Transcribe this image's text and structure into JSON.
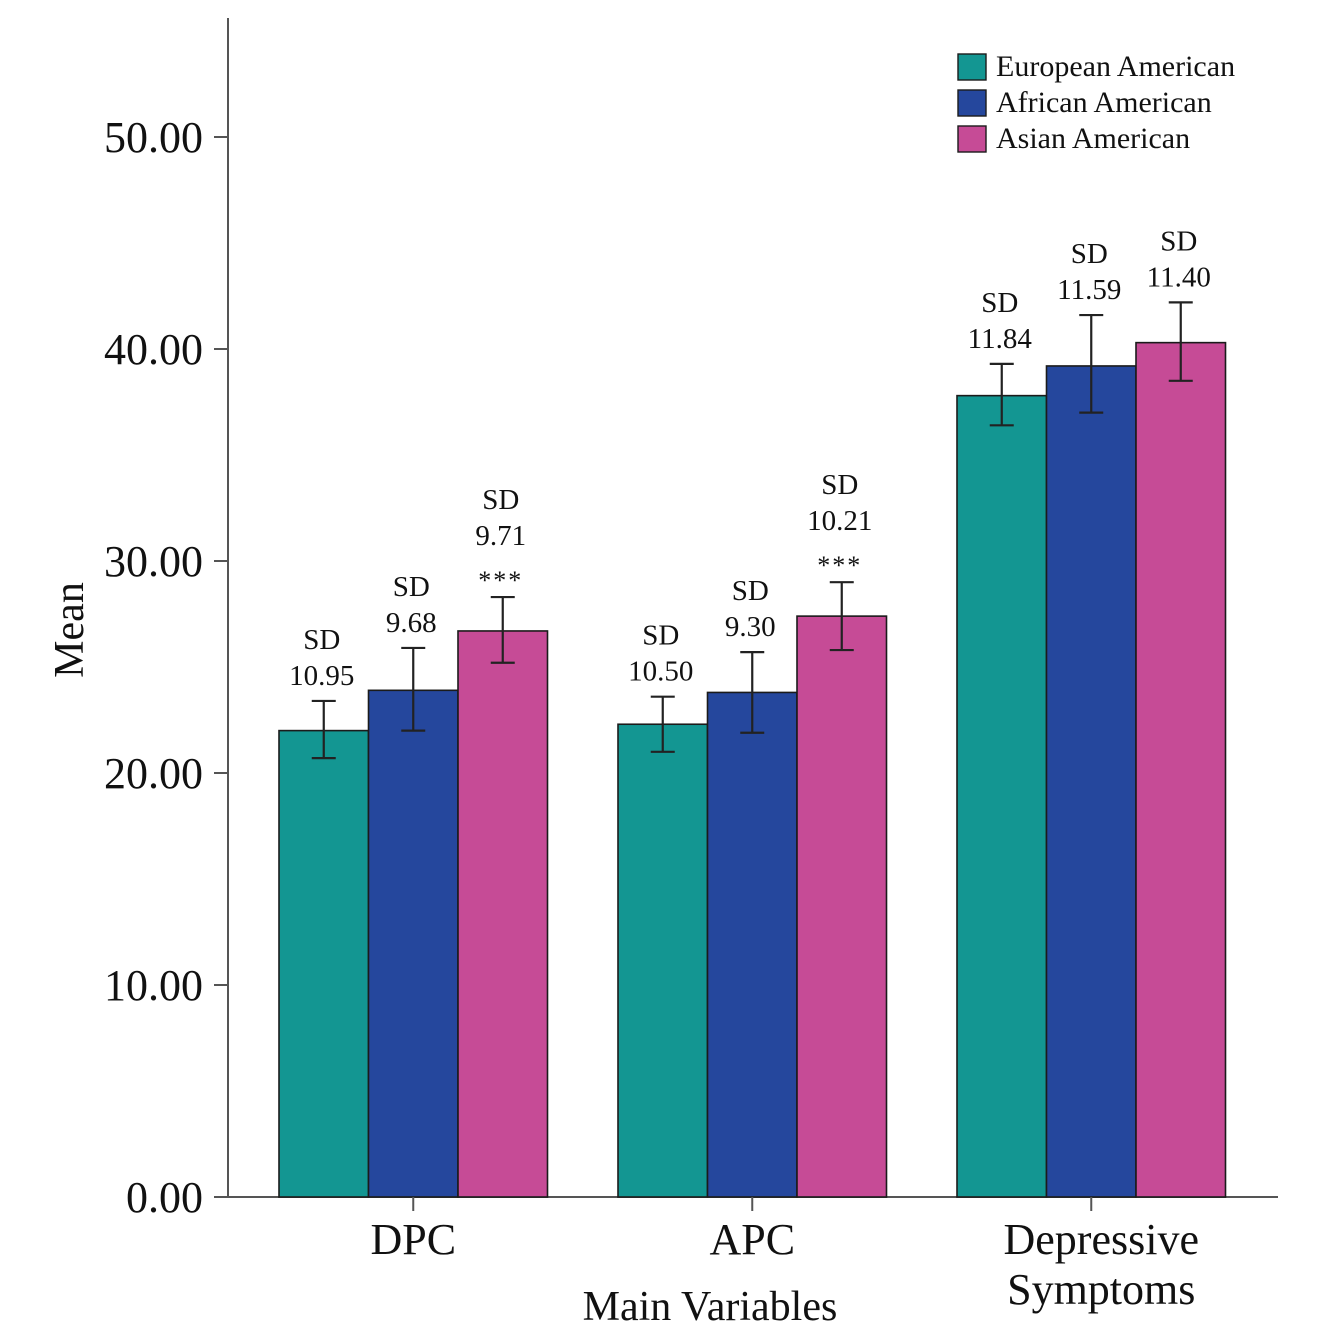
{
  "chart_data": {
    "type": "bar",
    "title": "",
    "xlabel": "Main Variables",
    "ylabel": "Mean",
    "ylim": [
      0,
      55
    ],
    "yticks": [
      "0.00",
      "10.00",
      "20.00",
      "30.00",
      "40.00",
      "50.00"
    ],
    "categories": [
      [
        "DPC"
      ],
      [
        "APC"
      ],
      [
        "Depressive",
        "Symptoms"
      ]
    ],
    "legend_position": "top-right",
    "grid": false,
    "series": [
      {
        "name": "European American",
        "color": "#139692",
        "values": [
          22.0,
          22.3,
          37.8
        ],
        "error_low": [
          20.7,
          21.0,
          36.4
        ],
        "error_high": [
          23.4,
          23.6,
          39.3
        ],
        "annotations": [
          [
            "SD",
            "10.95"
          ],
          [
            "SD",
            "10.50"
          ],
          [
            "SD",
            "11.84"
          ]
        ]
      },
      {
        "name": "African American",
        "color": "#25479d",
        "values": [
          23.9,
          23.8,
          39.2
        ],
        "error_low": [
          22.0,
          21.9,
          37.0
        ],
        "error_high": [
          25.9,
          25.7,
          41.6
        ],
        "annotations": [
          [
            "SD",
            "9.68"
          ],
          [
            "SD",
            "9.30"
          ],
          [
            "SD",
            "11.59"
          ]
        ]
      },
      {
        "name": "Asian American",
        "color": "#c64b96",
        "values": [
          26.7,
          27.4,
          40.3
        ],
        "error_low": [
          25.2,
          25.8,
          38.5
        ],
        "error_high": [
          28.3,
          29.0,
          42.2
        ],
        "annotations": [
          [
            "SD",
            "9.71",
            "***"
          ],
          [
            "SD",
            "10.21",
            "***"
          ],
          [
            "SD",
            "11.40"
          ]
        ]
      }
    ]
  }
}
